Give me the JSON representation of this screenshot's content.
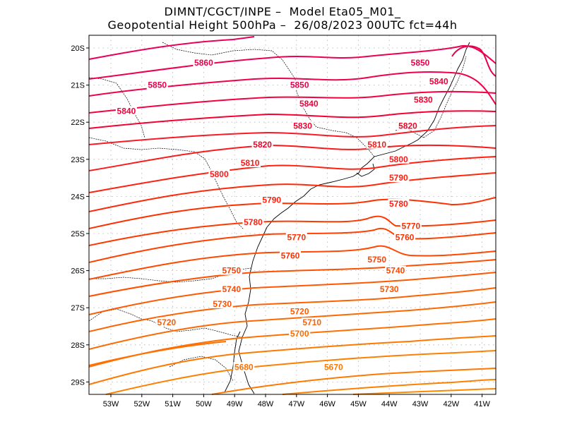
{
  "header": {
    "line1": "DIMNT/CGCT/INPE –  Model Eta05_M01_",
    "line2": "Geopotential Height 500hPa –  26/08/2023 00UTC fct=44h"
  },
  "axes": {
    "lat_labels": [
      "20S",
      "21S",
      "22S",
      "23S",
      "24S",
      "25S",
      "26S",
      "27S",
      "28S",
      "29S"
    ],
    "lon_labels": [
      "53W",
      "52W",
      "51W",
      "50W",
      "49W",
      "48W",
      "47W",
      "46W",
      "45W",
      "44W",
      "43W",
      "42W",
      "41W"
    ]
  },
  "colors": {
    "high": "#e8005a",
    "mid": "#ff1a1a",
    "low": "#ff7a00",
    "coast": "#000000",
    "grid": "#b0b0b0"
  },
  "contour_labels": [
    {
      "value": "5860",
      "lon": -50.0,
      "lat": -20.4,
      "color": "#e8004a"
    },
    {
      "value": "5850",
      "lon": -51.5,
      "lat": -21.0,
      "color": "#e8004a"
    },
    {
      "value": "5850",
      "lon": -46.9,
      "lat": -21.0,
      "color": "#e8004a"
    },
    {
      "value": "5850",
      "lon": -43.0,
      "lat": -20.4,
      "color": "#e8004a"
    },
    {
      "value": "5840",
      "lon": -52.5,
      "lat": -21.7,
      "color": "#f0003c"
    },
    {
      "value": "5840",
      "lon": -46.6,
      "lat": -21.5,
      "color": "#f0003c"
    },
    {
      "value": "5840",
      "lon": -42.4,
      "lat": -20.9,
      "color": "#f0003c"
    },
    {
      "value": "5830",
      "lon": -46.8,
      "lat": -22.1,
      "color": "#f50030"
    },
    {
      "value": "5830",
      "lon": -42.9,
      "lat": -21.4,
      "color": "#f50030"
    },
    {
      "value": "5820",
      "lon": -48.1,
      "lat": -22.6,
      "color": "#f50025"
    },
    {
      "value": "5820",
      "lon": -43.4,
      "lat": -22.1,
      "color": "#f50025"
    },
    {
      "value": "5810",
      "lon": -48.5,
      "lat": -23.1,
      "color": "#fa1a1a"
    },
    {
      "value": "5810",
      "lon": -44.4,
      "lat": -22.6,
      "color": "#fa1a1a"
    },
    {
      "value": "5800",
      "lon": -49.5,
      "lat": -23.4,
      "color": "#fa1a1a"
    },
    {
      "value": "5800",
      "lon": -43.7,
      "lat": -23.0,
      "color": "#fa1a1a"
    },
    {
      "value": "5790",
      "lon": -47.8,
      "lat": -24.1,
      "color": "#ff2010"
    },
    {
      "value": "5790",
      "lon": -43.7,
      "lat": -23.5,
      "color": "#ff2010"
    },
    {
      "value": "5780",
      "lon": -48.4,
      "lat": -24.7,
      "color": "#ff2010"
    },
    {
      "value": "5780",
      "lon": -43.7,
      "lat": -24.2,
      "color": "#ff2010"
    },
    {
      "value": "5770",
      "lon": -47.0,
      "lat": -25.1,
      "color": "#ff3000"
    },
    {
      "value": "5770",
      "lon": -43.3,
      "lat": -24.8,
      "color": "#ff3000"
    },
    {
      "value": "5760",
      "lon": -47.2,
      "lat": -25.6,
      "color": "#ff3000"
    },
    {
      "value": "5760",
      "lon": -43.5,
      "lat": -25.1,
      "color": "#ff3000"
    },
    {
      "value": "5750",
      "lon": -49.1,
      "lat": -26.0,
      "color": "#ff4000"
    },
    {
      "value": "5750",
      "lon": -44.4,
      "lat": -25.7,
      "color": "#ff4000"
    },
    {
      "value": "5740",
      "lon": -49.1,
      "lat": -26.5,
      "color": "#ff4800"
    },
    {
      "value": "5740",
      "lon": -43.8,
      "lat": -26.0,
      "color": "#ff4800"
    },
    {
      "value": "5730",
      "lon": -49.4,
      "lat": -26.9,
      "color": "#ff5000"
    },
    {
      "value": "5730",
      "lon": -44.0,
      "lat": -26.5,
      "color": "#ff5000"
    },
    {
      "value": "5720",
      "lon": -51.2,
      "lat": -27.4,
      "color": "#ff5a00"
    },
    {
      "value": "5720",
      "lon": -46.9,
      "lat": -27.1,
      "color": "#ff5a00"
    },
    {
      "value": "5710",
      "lon": -46.5,
      "lat": -27.4,
      "color": "#ff6000"
    },
    {
      "value": "5700",
      "lon": -46.9,
      "lat": -27.7,
      "color": "#ff6a00"
    },
    {
      "value": "5680",
      "lon": -48.7,
      "lat": -28.6,
      "color": "#ff7000"
    },
    {
      "value": "5670",
      "lon": -45.8,
      "lat": -28.6,
      "color": "#ff7800"
    }
  ]
}
